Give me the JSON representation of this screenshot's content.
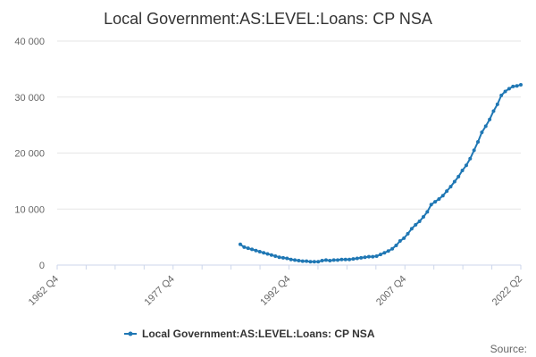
{
  "chart_data": {
    "type": "line",
    "title": "Local Government:AS:LEVEL:Loans: CP NSA",
    "xlabel": "",
    "ylabel": "",
    "ylim": [
      0,
      40000
    ],
    "y_ticks": [
      "0",
      "10 000",
      "20 000",
      "30 000",
      "40 000"
    ],
    "x_ticks": [
      "1962 Q4",
      "1977 Q4",
      "1992 Q4",
      "2007 Q4",
      "2022 Q2"
    ],
    "x_range": [
      1962.75,
      2022.25
    ],
    "grid": true,
    "legend_position": "bottom",
    "source_label": "Source:",
    "series": [
      {
        "name": "Local Government:AS:LEVEL:Loans: CP NSA",
        "color": "#1f77b4",
        "x": [
          1986.25,
          1986.75,
          1987.25,
          1987.75,
          1988.25,
          1988.75,
          1989.25,
          1989.75,
          1990.25,
          1990.75,
          1991.25,
          1991.75,
          1992.25,
          1992.75,
          1993.25,
          1993.75,
          1994.25,
          1994.75,
          1995.25,
          1995.75,
          1996.25,
          1996.75,
          1997.25,
          1997.75,
          1998.25,
          1998.75,
          1999.25,
          1999.75,
          2000.25,
          2000.75,
          2001.25,
          2001.75,
          2002.25,
          2002.75,
          2003.25,
          2003.75,
          2004.25,
          2004.75,
          2005.25,
          2005.75,
          2006.25,
          2006.75,
          2007.25,
          2007.75,
          2008.25,
          2008.75,
          2009.25,
          2009.75,
          2010.25,
          2010.75,
          2011.25,
          2011.75,
          2012.25,
          2012.75,
          2013.25,
          2013.75,
          2014.25,
          2014.75,
          2015.25,
          2015.75,
          2016.25,
          2016.75,
          2017.25,
          2017.75,
          2018.25,
          2018.75,
          2019.25,
          2019.75,
          2020.25,
          2020.75,
          2021.25,
          2021.75,
          2022.25
        ],
        "values": [
          3700,
          3200,
          3000,
          2800,
          2600,
          2400,
          2200,
          2000,
          1800,
          1600,
          1400,
          1300,
          1200,
          1000,
          900,
          800,
          700,
          700,
          600,
          600,
          600,
          800,
          900,
          800,
          900,
          900,
          1000,
          1000,
          1000,
          1100,
          1200,
          1300,
          1400,
          1500,
          1500,
          1600,
          1900,
          2200,
          2500,
          2900,
          3500,
          4300,
          4800,
          5600,
          6500,
          7200,
          7800,
          8600,
          9500,
          10800,
          11300,
          11800,
          12400,
          13200,
          14000,
          14900,
          15800,
          16900,
          17800,
          19000,
          20500,
          22000,
          23700,
          24800,
          26000,
          27500,
          28700,
          30300,
          31000,
          31500,
          31900,
          32000,
          32200
        ]
      }
    ]
  }
}
